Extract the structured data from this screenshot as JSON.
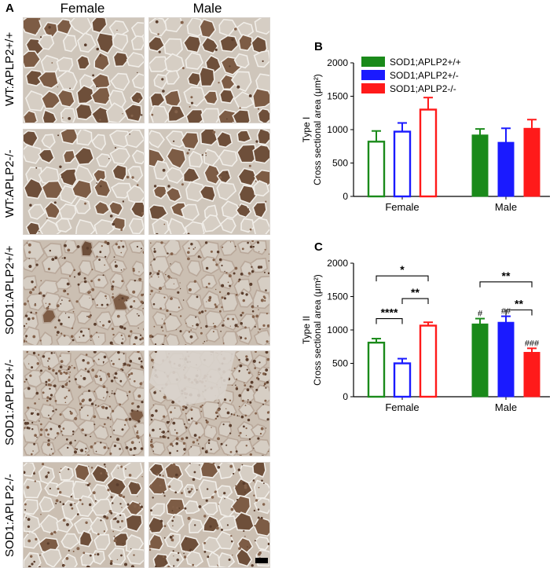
{
  "panel_a": {
    "letter": "A",
    "columns": [
      "Female",
      "Male"
    ],
    "rows": [
      "WT:APLP2+/+",
      "WT:APLP2-/-",
      "SOD1:APLP2+/+",
      "SOD1:APLP2+/-",
      "SOD1:APLP2-/-"
    ]
  },
  "panel_b_letter": "B",
  "panel_c_letter": "C",
  "legend": [
    {
      "label": "SOD1;APLP2+/+",
      "color": "#1a8a1a"
    },
    {
      "label": "SOD1;APLP2+/-",
      "color": "#1a1aff"
    },
    {
      "label": "SOD1;APLP2-/-",
      "color": "#ff1a1a"
    }
  ],
  "chart_data": [
    {
      "type": "bar",
      "panel": "B",
      "ylabel_line1": "Type I",
      "ylabel_line2": "Cross sectional area (μm²)",
      "ylim": [
        0,
        2000
      ],
      "yticks": [
        0,
        500,
        1000,
        1500,
        2000
      ],
      "categories": [
        "Female",
        "Male"
      ],
      "series": [
        {
          "name": "SOD1;APLP2+/+",
          "color": "#1a8a1a",
          "values": [
            820,
            920
          ],
          "errors": [
            160,
            90
          ],
          "hollow": [
            true,
            false
          ]
        },
        {
          "name": "SOD1;APLP2+/-",
          "color": "#1a1aff",
          "values": [
            970,
            810
          ],
          "errors": [
            130,
            210
          ],
          "hollow": [
            true,
            false
          ]
        },
        {
          "name": "SOD1;APLP2-/-",
          "color": "#ff1a1a",
          "values": [
            1300,
            1020
          ],
          "errors": [
            180,
            130
          ],
          "hollow": [
            true,
            false
          ]
        }
      ]
    },
    {
      "type": "bar",
      "panel": "C",
      "ylabel_line1": "Type II",
      "ylabel_line2": "Cross sectional area (μm²)",
      "ylim": [
        0,
        2000
      ],
      "yticks": [
        0,
        500,
        1000,
        1500,
        2000
      ],
      "categories": [
        "Female",
        "Male"
      ],
      "series": [
        {
          "name": "SOD1;APLP2+/+",
          "color": "#1a8a1a",
          "values": [
            810,
            1090
          ],
          "errors": [
            60,
            80
          ],
          "hollow": [
            true,
            false
          ]
        },
        {
          "name": "SOD1;APLP2+/-",
          "color": "#1a1aff",
          "values": [
            500,
            1115
          ],
          "errors": [
            70,
            90
          ],
          "hollow": [
            true,
            false
          ]
        },
        {
          "name": "SOD1;APLP2-/-",
          "color": "#ff1a1a",
          "values": [
            1065,
            665
          ],
          "errors": [
            50,
            60
          ],
          "hollow": [
            true,
            false
          ]
        }
      ],
      "bar_annotations": [
        {
          "category": 1,
          "series": 0,
          "text": "#"
        },
        {
          "category": 1,
          "series": 1,
          "text": "##"
        },
        {
          "category": 1,
          "series": 2,
          "text": "###"
        }
      ],
      "brackets": [
        {
          "category": 0,
          "from": 0,
          "to": 1,
          "level": 1170,
          "text": "****"
        },
        {
          "category": 0,
          "from": 1,
          "to": 2,
          "level": 1470,
          "text": "**"
        },
        {
          "category": 0,
          "from": 0,
          "to": 2,
          "level": 1810,
          "text": "*"
        },
        {
          "category": 1,
          "from": 1,
          "to": 2,
          "level": 1300,
          "text": "**"
        },
        {
          "category": 1,
          "from": 0,
          "to": 2,
          "level": 1720,
          "text": "**"
        }
      ]
    }
  ]
}
